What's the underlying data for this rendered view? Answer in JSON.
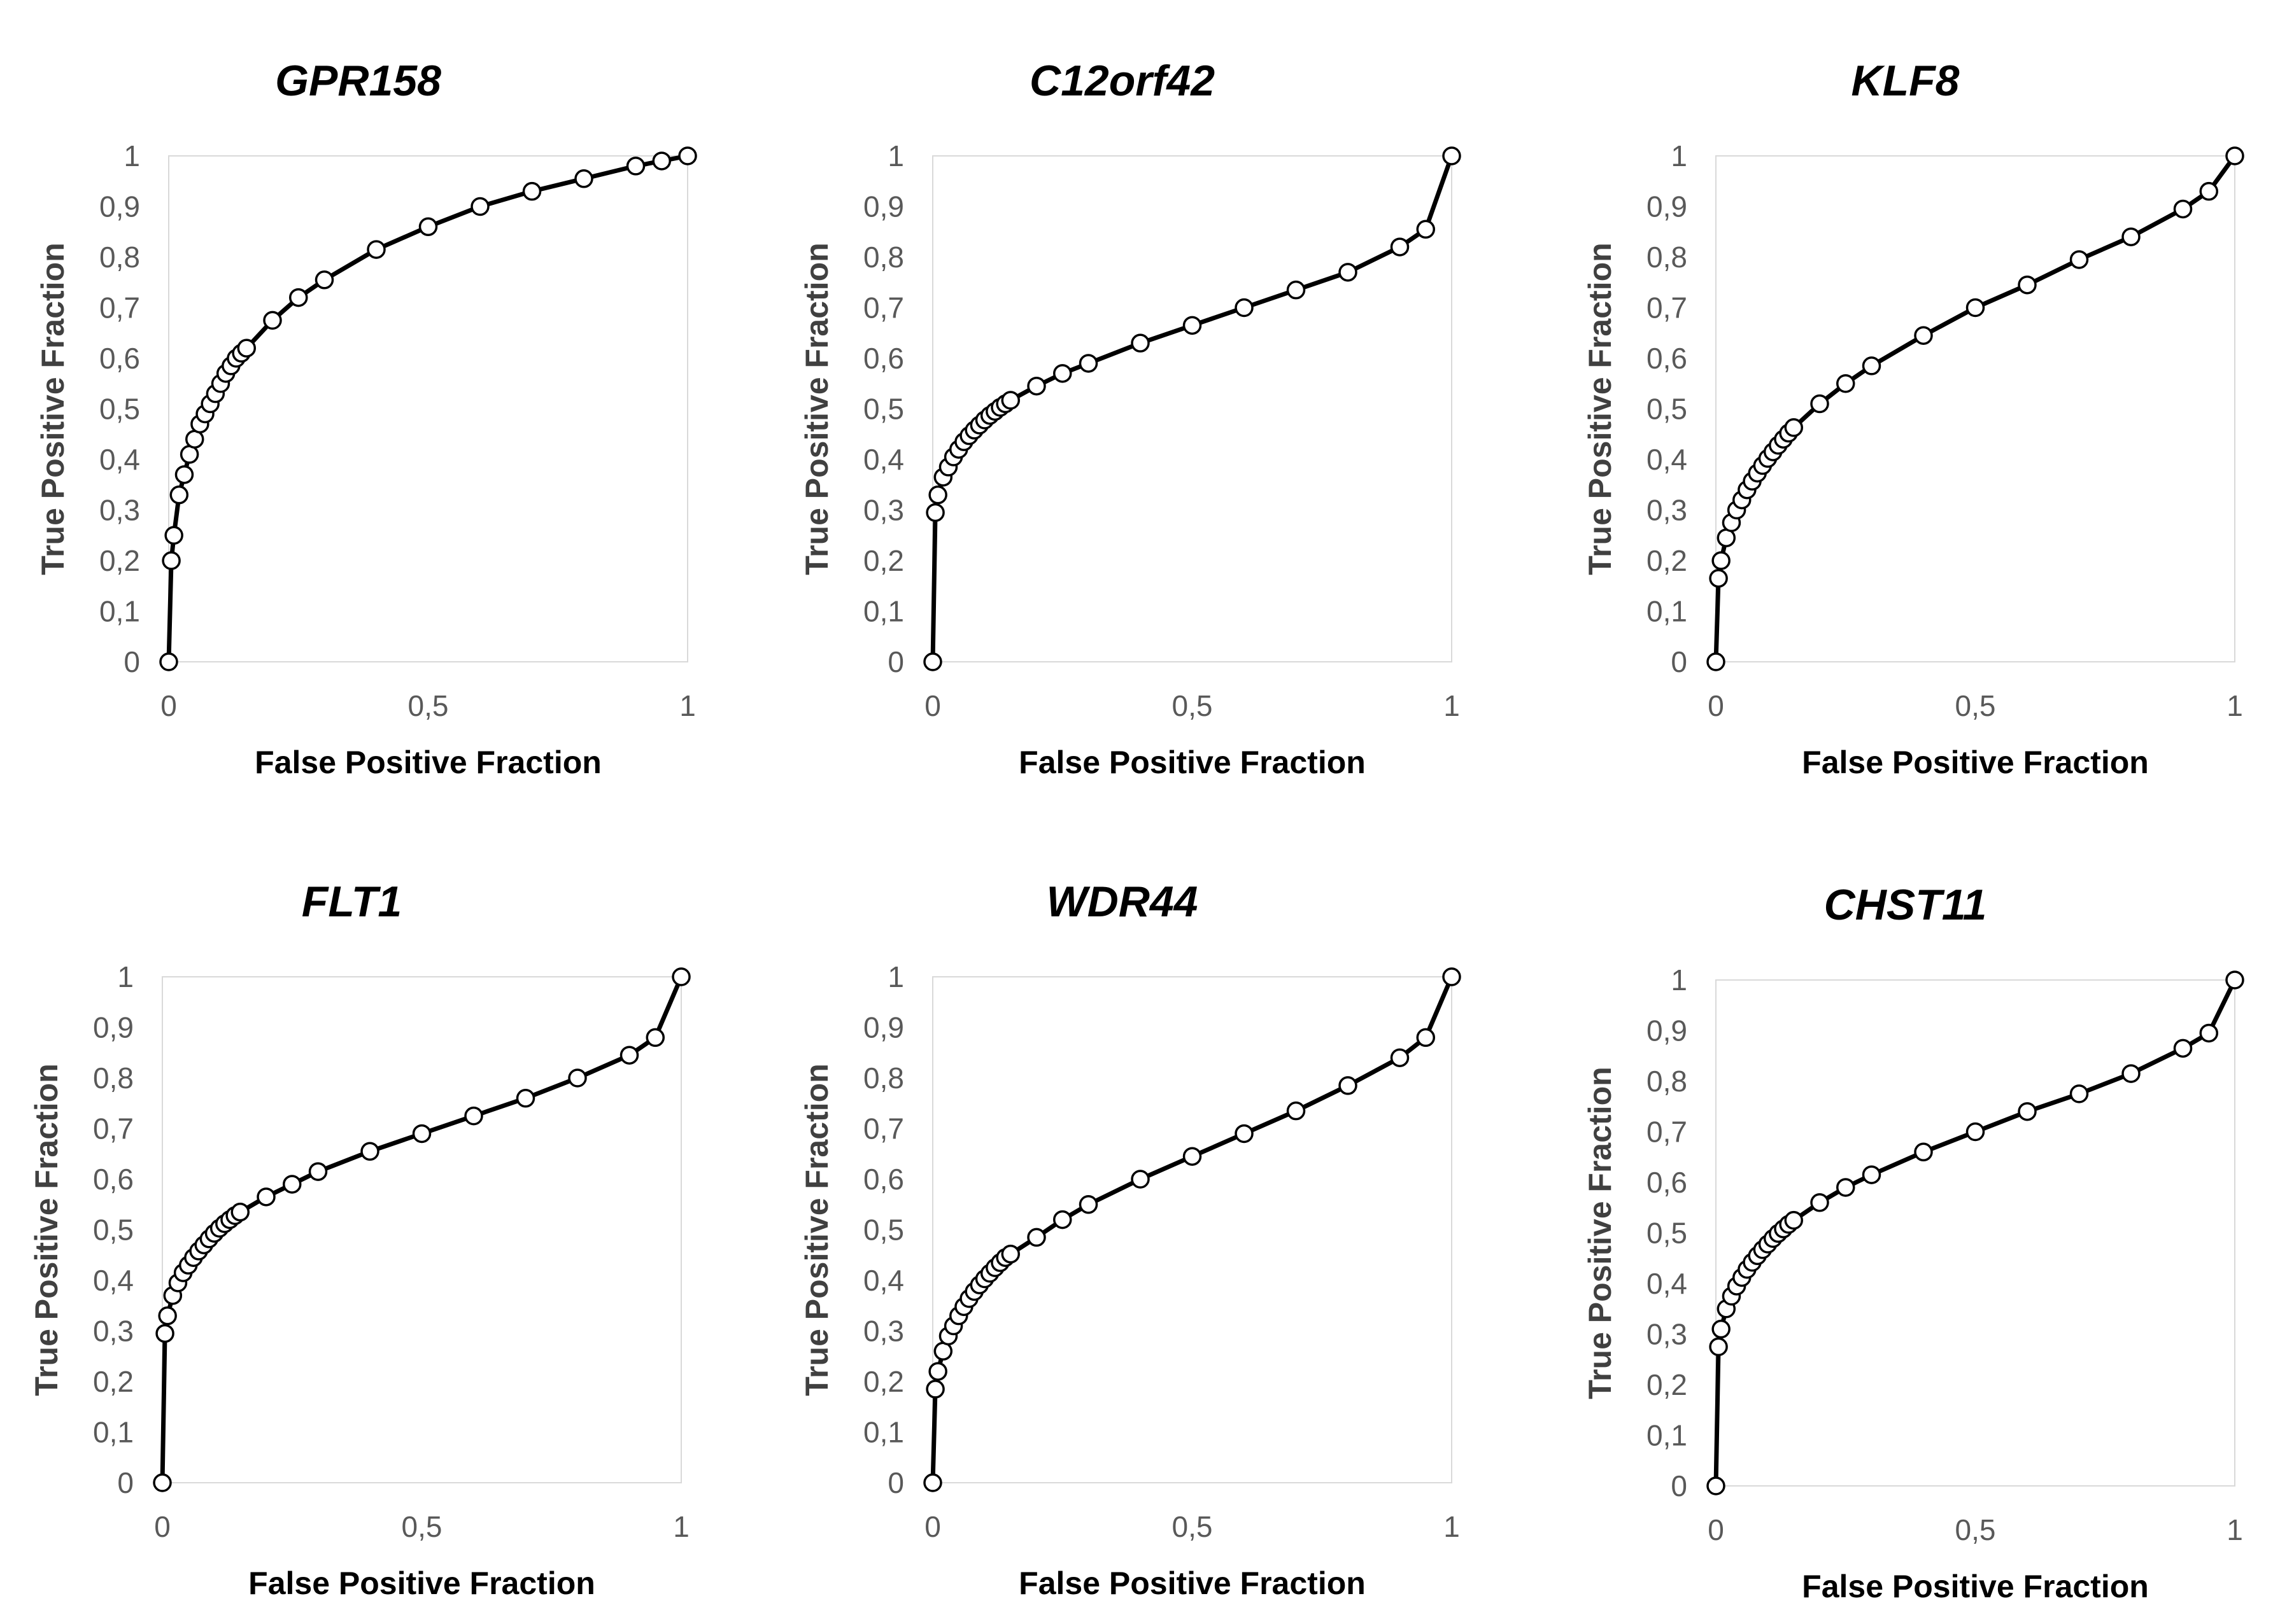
{
  "chart_data": [
    {
      "type": "line",
      "title": "GPR158",
      "xlabel": "False Positive Fraction",
      "ylabel": "True Positive Fraction",
      "xlim": [
        0,
        1
      ],
      "ylim": [
        0,
        1
      ],
      "xticks": [
        "0",
        "0,5",
        "1"
      ],
      "yticks": [
        "0",
        "0,1",
        "0,2",
        "0,3",
        "0,4",
        "0,5",
        "0,6",
        "0,7",
        "0,8",
        "0,9",
        "1"
      ],
      "grid": false,
      "x": [
        0,
        0.005,
        0.01,
        0.02,
        0.03,
        0.04,
        0.05,
        0.06,
        0.07,
        0.08,
        0.09,
        0.1,
        0.11,
        0.12,
        0.13,
        0.14,
        0.15,
        0.2,
        0.25,
        0.3,
        0.4,
        0.5,
        0.6,
        0.7,
        0.8,
        0.9,
        0.95,
        1
      ],
      "y": [
        0,
        0.2,
        0.25,
        0.33,
        0.37,
        0.41,
        0.44,
        0.47,
        0.49,
        0.51,
        0.53,
        0.55,
        0.57,
        0.585,
        0.6,
        0.61,
        0.62,
        0.675,
        0.72,
        0.755,
        0.815,
        0.86,
        0.9,
        0.93,
        0.955,
        0.98,
        0.99,
        1
      ]
    },
    {
      "type": "line",
      "title": "C12orf42",
      "xlabel": "False Positive Fraction",
      "ylabel": "True Positive Fraction",
      "xlim": [
        0,
        1
      ],
      "ylim": [
        0,
        1
      ],
      "xticks": [
        "0",
        "0,5",
        "1"
      ],
      "yticks": [
        "0",
        "0,1",
        "0,2",
        "0,3",
        "0,4",
        "0,5",
        "0,6",
        "0,7",
        "0,8",
        "0,9",
        "1"
      ],
      "grid": false,
      "x": [
        0,
        0.005,
        0.01,
        0.02,
        0.03,
        0.04,
        0.05,
        0.06,
        0.07,
        0.08,
        0.09,
        0.1,
        0.11,
        0.12,
        0.13,
        0.14,
        0.15,
        0.2,
        0.25,
        0.3,
        0.4,
        0.5,
        0.6,
        0.7,
        0.8,
        0.9,
        0.95,
        1
      ],
      "y": [
        0,
        0.295,
        0.33,
        0.365,
        0.385,
        0.405,
        0.42,
        0.435,
        0.447,
        0.458,
        0.468,
        0.478,
        0.487,
        0.495,
        0.503,
        0.51,
        0.517,
        0.545,
        0.57,
        0.59,
        0.63,
        0.665,
        0.7,
        0.735,
        0.77,
        0.82,
        0.855,
        1
      ]
    },
    {
      "type": "line",
      "title": "KLF8",
      "xlabel": "False Positive Fraction",
      "ylabel": "True Positive Fraction",
      "xlim": [
        0,
        1
      ],
      "ylim": [
        0,
        1
      ],
      "xticks": [
        "0",
        "0,5",
        "1"
      ],
      "yticks": [
        "0",
        "0,1",
        "0,2",
        "0,3",
        "0,4",
        "0,5",
        "0,6",
        "0,7",
        "0,8",
        "0,9",
        "1"
      ],
      "grid": false,
      "x": [
        0,
        0.005,
        0.01,
        0.02,
        0.03,
        0.04,
        0.05,
        0.06,
        0.07,
        0.08,
        0.09,
        0.1,
        0.11,
        0.12,
        0.13,
        0.14,
        0.15,
        0.2,
        0.25,
        0.3,
        0.4,
        0.5,
        0.6,
        0.7,
        0.8,
        0.9,
        0.95,
        1
      ],
      "y": [
        0,
        0.165,
        0.2,
        0.245,
        0.275,
        0.3,
        0.32,
        0.34,
        0.357,
        0.373,
        0.388,
        0.402,
        0.415,
        0.428,
        0.44,
        0.452,
        0.463,
        0.51,
        0.55,
        0.585,
        0.645,
        0.7,
        0.745,
        0.795,
        0.84,
        0.895,
        0.93,
        1
      ]
    },
    {
      "type": "line",
      "title": "FLT1",
      "xlabel": "False Positive Fraction",
      "ylabel": "True Positive Fraction",
      "xlim": [
        0,
        1
      ],
      "ylim": [
        0,
        1
      ],
      "xticks": [
        "0",
        "0,5",
        "1"
      ],
      "yticks": [
        "0",
        "0,1",
        "0,2",
        "0,3",
        "0,4",
        "0,5",
        "0,6",
        "0,7",
        "0,8",
        "0,9",
        "1"
      ],
      "grid": false,
      "x": [
        0,
        0.005,
        0.01,
        0.02,
        0.03,
        0.04,
        0.05,
        0.06,
        0.07,
        0.08,
        0.09,
        0.1,
        0.11,
        0.12,
        0.13,
        0.14,
        0.15,
        0.2,
        0.25,
        0.3,
        0.4,
        0.5,
        0.6,
        0.7,
        0.8,
        0.9,
        0.95,
        1
      ],
      "y": [
        0,
        0.295,
        0.33,
        0.37,
        0.395,
        0.415,
        0.43,
        0.445,
        0.458,
        0.47,
        0.482,
        0.493,
        0.503,
        0.512,
        0.52,
        0.528,
        0.535,
        0.565,
        0.59,
        0.615,
        0.655,
        0.69,
        0.725,
        0.76,
        0.8,
        0.845,
        0.88,
        1
      ]
    },
    {
      "type": "line",
      "title": "WDR44",
      "xlabel": "False Positive Fraction",
      "ylabel": "True Positive Fraction",
      "xlim": [
        0,
        1
      ],
      "ylim": [
        0,
        1
      ],
      "xticks": [
        "0",
        "0,5",
        "1"
      ],
      "yticks": [
        "0",
        "0,1",
        "0,2",
        "0,3",
        "0,4",
        "0,5",
        "0,6",
        "0,7",
        "0,8",
        "0,9",
        "1"
      ],
      "grid": false,
      "x": [
        0,
        0.005,
        0.01,
        0.02,
        0.03,
        0.04,
        0.05,
        0.06,
        0.07,
        0.08,
        0.09,
        0.1,
        0.11,
        0.12,
        0.13,
        0.14,
        0.15,
        0.2,
        0.25,
        0.3,
        0.4,
        0.5,
        0.6,
        0.7,
        0.8,
        0.9,
        0.95,
        1
      ],
      "y": [
        0,
        0.185,
        0.22,
        0.26,
        0.29,
        0.31,
        0.33,
        0.348,
        0.364,
        0.378,
        0.391,
        0.403,
        0.414,
        0.425,
        0.435,
        0.445,
        0.452,
        0.485,
        0.52,
        0.55,
        0.6,
        0.645,
        0.69,
        0.735,
        0.785,
        0.84,
        0.88,
        1
      ]
    },
    {
      "type": "line",
      "title": "CHST11",
      "xlabel": "False Positive Fraction",
      "ylabel": "True Positive Fraction",
      "xlim": [
        0,
        1
      ],
      "ylim": [
        0,
        1
      ],
      "xticks": [
        "0",
        "0,5",
        "1"
      ],
      "yticks": [
        "0",
        "0,1",
        "0,2",
        "0,3",
        "0,4",
        "0,5",
        "0,6",
        "0,7",
        "0,8",
        "0,9",
        "1"
      ],
      "grid": false,
      "x": [
        0,
        0.005,
        0.01,
        0.02,
        0.03,
        0.04,
        0.05,
        0.06,
        0.07,
        0.08,
        0.09,
        0.1,
        0.11,
        0.12,
        0.13,
        0.14,
        0.15,
        0.2,
        0.25,
        0.3,
        0.4,
        0.5,
        0.6,
        0.7,
        0.8,
        0.9,
        0.95,
        1
      ],
      "y": [
        0,
        0.275,
        0.31,
        0.35,
        0.375,
        0.395,
        0.412,
        0.428,
        0.442,
        0.455,
        0.467,
        0.478,
        0.489,
        0.499,
        0.508,
        0.517,
        0.525,
        0.56,
        0.59,
        0.615,
        0.66,
        0.7,
        0.74,
        0.775,
        0.815,
        0.865,
        0.895,
        1
      ]
    }
  ]
}
